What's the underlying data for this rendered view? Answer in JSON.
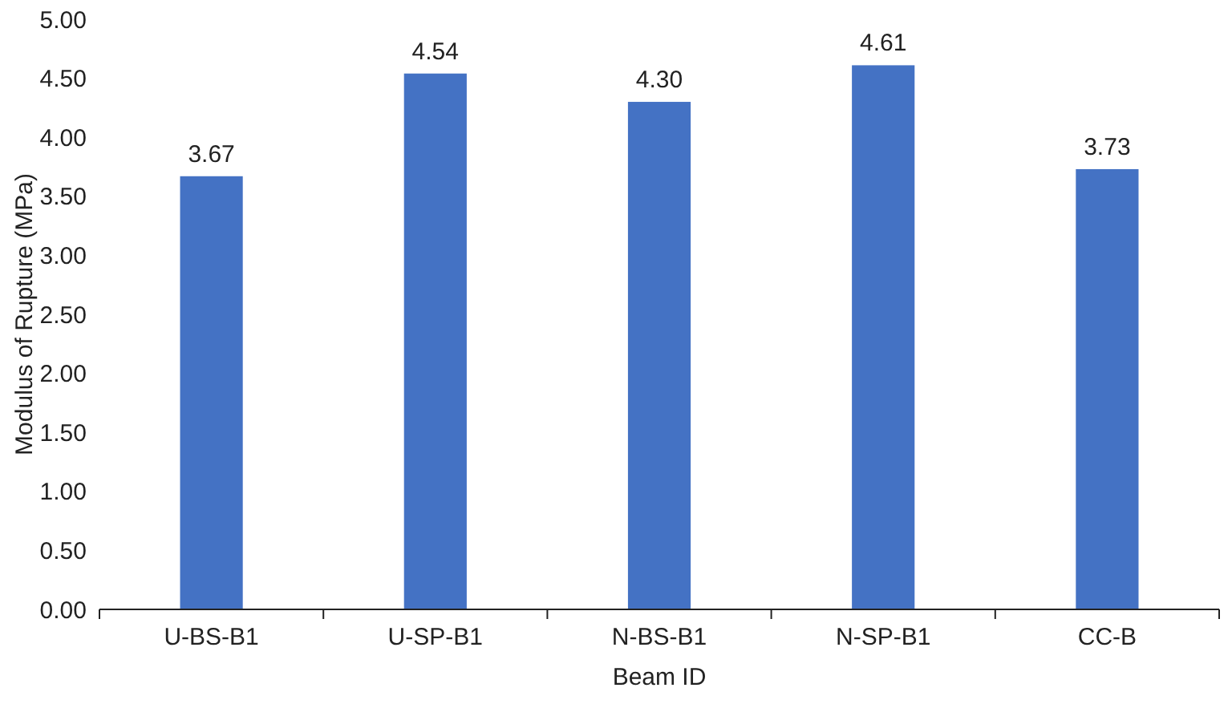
{
  "chart_data": {
    "type": "bar",
    "xlabel": "Beam ID",
    "ylabel": "Modulus of Rupture (MPa)",
    "categories": [
      "U-BS-B1",
      "U-SP-B1",
      "N-BS-B1",
      "N-SP-B1",
      "CC-B"
    ],
    "values": [
      3.67,
      4.54,
      4.3,
      4.61,
      3.73
    ],
    "value_labels": [
      "3.67",
      "4.54",
      "4.30",
      "4.61",
      "3.73"
    ],
    "color": "#4472c4",
    "ylim": [
      0,
      5
    ],
    "yticks": [
      {
        "value": 0,
        "label": "0.00"
      },
      {
        "value": 0.5,
        "label": "0.50"
      },
      {
        "value": 1,
        "label": "1.00"
      },
      {
        "value": 1.5,
        "label": "1.50"
      },
      {
        "value": 2,
        "label": "2.00"
      },
      {
        "value": 2.5,
        "label": "2.50"
      },
      {
        "value": 3,
        "label": "3.00"
      },
      {
        "value": 3.5,
        "label": "3.50"
      },
      {
        "value": 4,
        "label": "4.00"
      },
      {
        "value": 4.5,
        "label": "4.50"
      },
      {
        "value": 5,
        "label": "5.00"
      }
    ],
    "grid": false
  }
}
